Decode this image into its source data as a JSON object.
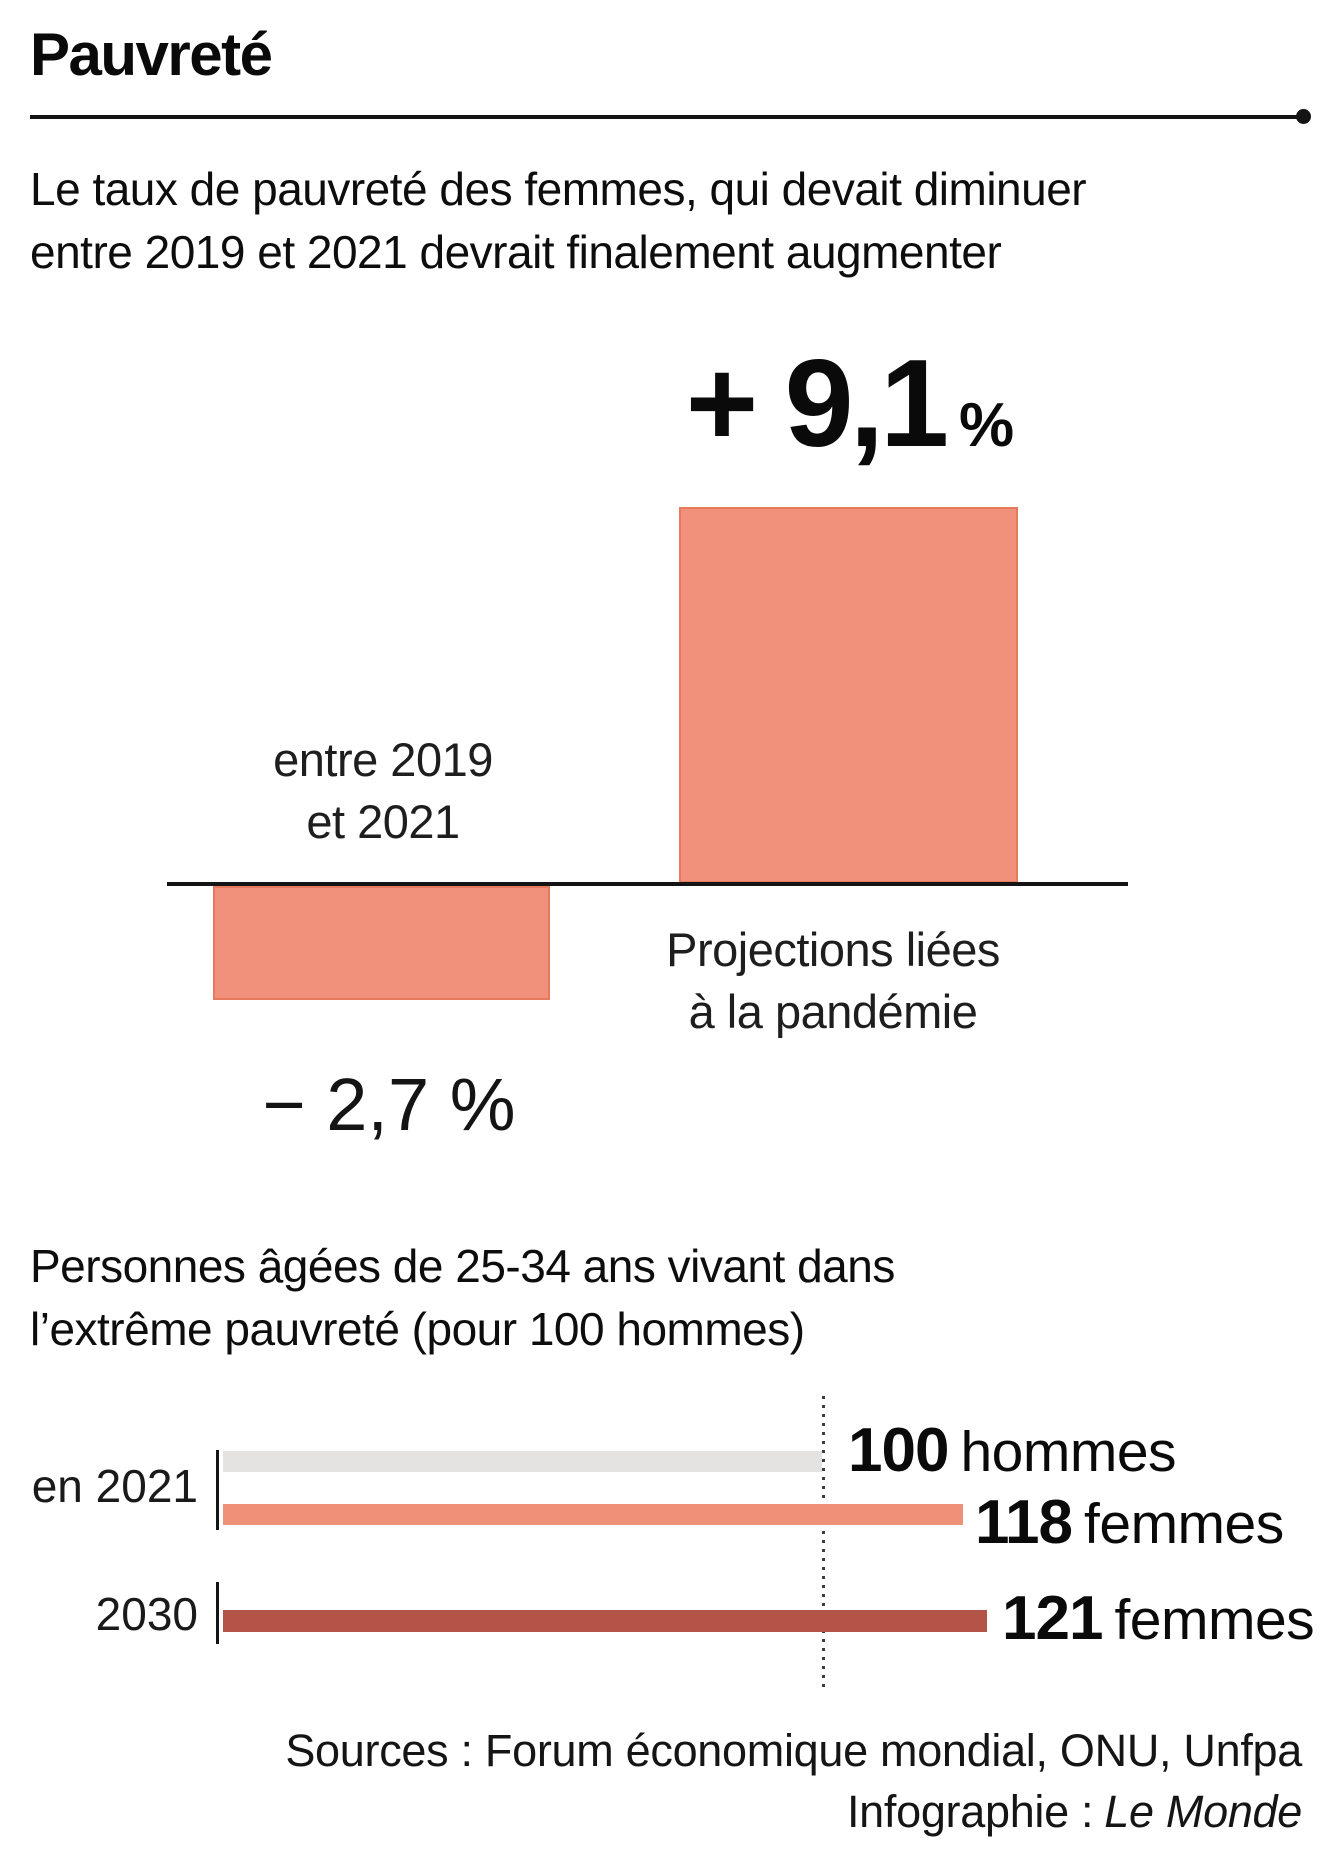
{
  "header": {
    "title": "Pauvreté"
  },
  "intro": {
    "line1": "Le taux de pauvreté des femmes, qui devait diminuer",
    "line2": "entre 2019 et 2021 devrait finalement augmenter"
  },
  "chart1": {
    "positive_value": "+ 9,1",
    "positive_pct": "%",
    "left_label_line1": "entre 2019",
    "left_label_line2": "et 2021",
    "right_label_line1": "Projections liées",
    "right_label_line2": "à la pandémie",
    "negative_value": "− 2,7 %"
  },
  "section2": {
    "title_line1": "Personnes âgées de 25-34 ans vivant dans",
    "title_line2": "l’extrême pauvreté (pour 100 hommes)"
  },
  "chart2": {
    "row1_label": "en 2021",
    "row2_label": "2030",
    "bar1_value": "100",
    "bar1_suffix": "hommes",
    "bar2_value": "118",
    "bar2_suffix": "femmes",
    "bar3_value": "121",
    "bar3_suffix": "femmes"
  },
  "footer": {
    "sources": "Sources : Forum économique mondial, ONU, Unfpa",
    "credit_label": "Infographie :",
    "credit_name": "Le Monde"
  },
  "colors": {
    "salmon_fill": "#F1917B",
    "salmon_border": "#E57A5C",
    "light_gray": "#E5E3E2",
    "salmon_bar": "#EF9078",
    "brick": "#B35447",
    "ink": "#141414"
  },
  "chart_data": [
    {
      "type": "bar",
      "title": "Le taux de pauvreté des femmes, qui devait diminuer entre 2019 et 2021 devrait finalement augmenter",
      "categories": [
        "entre 2019 et 2021",
        "Projections liées à la pandémie"
      ],
      "values": [
        -2.7,
        9.1
      ],
      "unit": "%",
      "data_labels": [
        "− 2,7 %",
        "+ 9,1 %"
      ],
      "baseline": 0,
      "bar_color": "#F1917B",
      "grid": false,
      "legend": false
    },
    {
      "type": "bar",
      "orientation": "horizontal",
      "title": "Personnes âgées de 25-34 ans vivant dans l’extrême pauvreté (pour 100 hommes)",
      "categories": [
        "en 2021 — hommes",
        "en 2021 — femmes",
        "2030 — femmes"
      ],
      "values": [
        100,
        118,
        121
      ],
      "data_labels": [
        "100 hommes",
        "118 femmes",
        "121 femmes"
      ],
      "reference_line": 100,
      "bar_colors": [
        "#E5E3E2",
        "#EF9078",
        "#B35447"
      ],
      "grid": false,
      "legend": false
    }
  ]
}
